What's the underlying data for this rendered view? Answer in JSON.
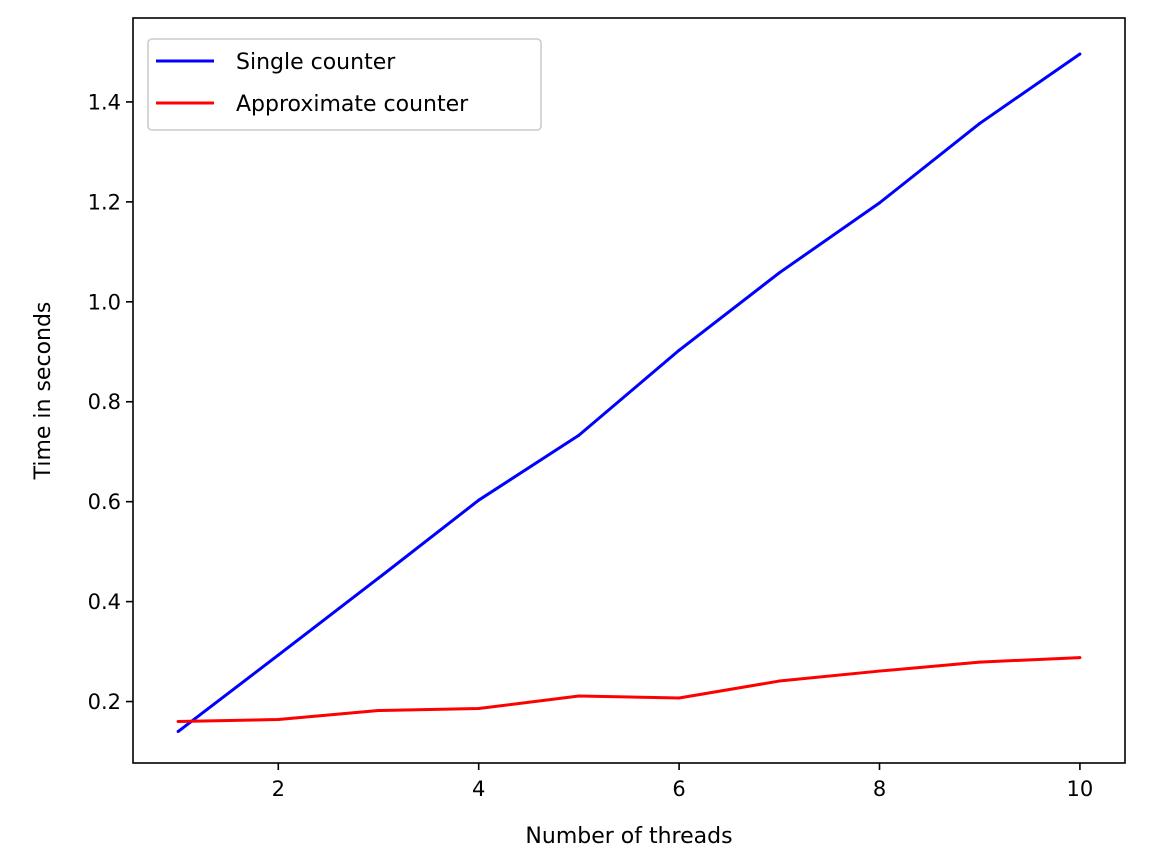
{
  "chart_data": {
    "type": "line",
    "title": "",
    "xlabel": "Number of threads",
    "ylabel": "Time in seconds",
    "x": [
      1,
      2,
      3,
      4,
      5,
      6,
      7,
      8,
      9,
      10
    ],
    "xlim": [
      0.55,
      10.45
    ],
    "ylim": [
      0.077,
      1.568
    ],
    "xticks": [
      2,
      4,
      6,
      8,
      10
    ],
    "xtick_labels": [
      "2",
      "4",
      "6",
      "8",
      "10"
    ],
    "yticks": [
      0.2,
      0.4,
      0.6,
      0.8,
      1.0,
      1.2,
      1.4
    ],
    "ytick_labels": [
      "0.2",
      "0.4",
      "0.6",
      "0.8",
      "1.0",
      "1.2",
      "1.4"
    ],
    "grid": false,
    "legend_position": "top-left",
    "series": [
      {
        "name": "Single counter",
        "color": "#0000ff",
        "values": [
          0.14,
          0.293,
          0.447,
          0.603,
          0.733,
          0.903,
          1.058,
          1.198,
          1.357,
          1.496
        ]
      },
      {
        "name": "Approximate counter",
        "color": "#ff0000",
        "values": [
          0.16,
          0.164,
          0.182,
          0.186,
          0.211,
          0.207,
          0.241,
          0.261,
          0.279,
          0.288
        ]
      }
    ]
  }
}
